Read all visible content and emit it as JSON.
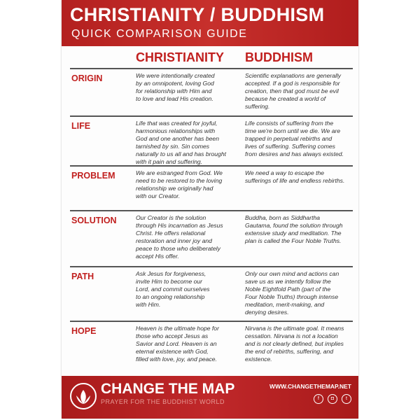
{
  "header": {
    "title": "CHRISTIANITY / BUDDHISM",
    "subtitle": "QUICK COMPARISON GUIDE"
  },
  "columns": [
    "CHRISTIANITY",
    "BUDDHISM"
  ],
  "rows": [
    {
      "label": "ORIGIN",
      "christianity": "We were intentionally created\nby an omnipotent, loving God\nfor relationship with Him and\nto love and lead His creation.",
      "buddhism": "Scientific explanations are generally\naccepted. If a god is responsible for\ncreation, then that god must be evil\nbecause he created a world of\nsuffering."
    },
    {
      "label": "LIFE",
      "christianity": "Life that was created for joyful,\nharmonious relationships with\nGod and one another has been\ntarnished by sin. Sin comes\nnaturally to us all and has brought\nwith it pain and suffering.",
      "buddhism": "Life consists of suffering from the\ntime we're born until we die. We are\ntrapped in perpetual rebirths and\nlives of suffering. Suffering comes\nfrom desires and has always existed."
    },
    {
      "label": "PROBLEM",
      "christianity": "We are estranged from God. We\nneed to be restored to the loving\nrelationship we originally had\nwith our Creator.",
      "buddhism": "We need a way to escape the\nsufferings of life and endless rebirths."
    },
    {
      "label": "SOLUTION",
      "christianity": "Our Creator is the solution\nthrough His incarnation as Jesus\nChrist. He offers relational\nrestoration and inner joy and\npeace to those who deliberately\naccept His offer.",
      "buddhism": "Buddha, born as Siddhartha\nGautama, found the solution through\nextensive study and meditation. The\nplan is called the Four Noble Truths."
    },
    {
      "label": "PATH",
      "christianity": "Ask Jesus for forgiveness,\ninvite Him to become our\nLord, and commit ourselves\nto an ongoing relationship\nwith Him.",
      "buddhism": "Only our own mind and actions can\nsave us as we intently follow the\nNoble Eightfold Path (part of the\nFour Noble Truths) through intense\nmeditation, merit-making, and\ndenying desires."
    },
    {
      "label": "HOPE",
      "christianity": "Heaven is the ultimate hope for\nthose who accept Jesus as\nSavior and Lord. Heaven is an\neternal existence with God,\nfilled with love, joy, and peace.",
      "buddhism": "Nirvana is the ultimate goal. It means\ncessation. Nirvana is not a location\nand is not clearly defined, but implies\nthe end of rebirths, suffering, and\nexistence."
    }
  ],
  "footer": {
    "brand": "CHANGE THE MAP",
    "tagline": "PRAYER FOR THE BUDDHIST WORLD",
    "url": "WWW.CHANGETHEMAP.NET",
    "social": [
      {
        "icon": "facebook-icon",
        "glyph": "f"
      },
      {
        "icon": "instagram-icon",
        "glyph": "◘"
      },
      {
        "icon": "twitter-icon",
        "glyph": "t"
      }
    ]
  },
  "colors": {
    "accent": "#c1201f"
  }
}
